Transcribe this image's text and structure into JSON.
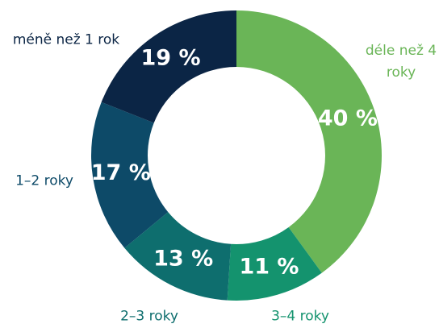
{
  "chart_data": {
    "type": "donut",
    "categories": [
      "déle než 4 roky",
      "3–4 roky",
      "2–3 roky",
      "1–2 roky",
      "méně než 1 rok"
    ],
    "values": [
      40,
      11,
      13,
      17,
      19
    ],
    "value_labels": [
      "40 %",
      "11 %",
      "13 %",
      "17 %",
      "19 %"
    ],
    "colors": [
      "#6ab557",
      "#14936e",
      "#0e6e6e",
      "#0d4a68",
      "#0b2545"
    ]
  }
}
